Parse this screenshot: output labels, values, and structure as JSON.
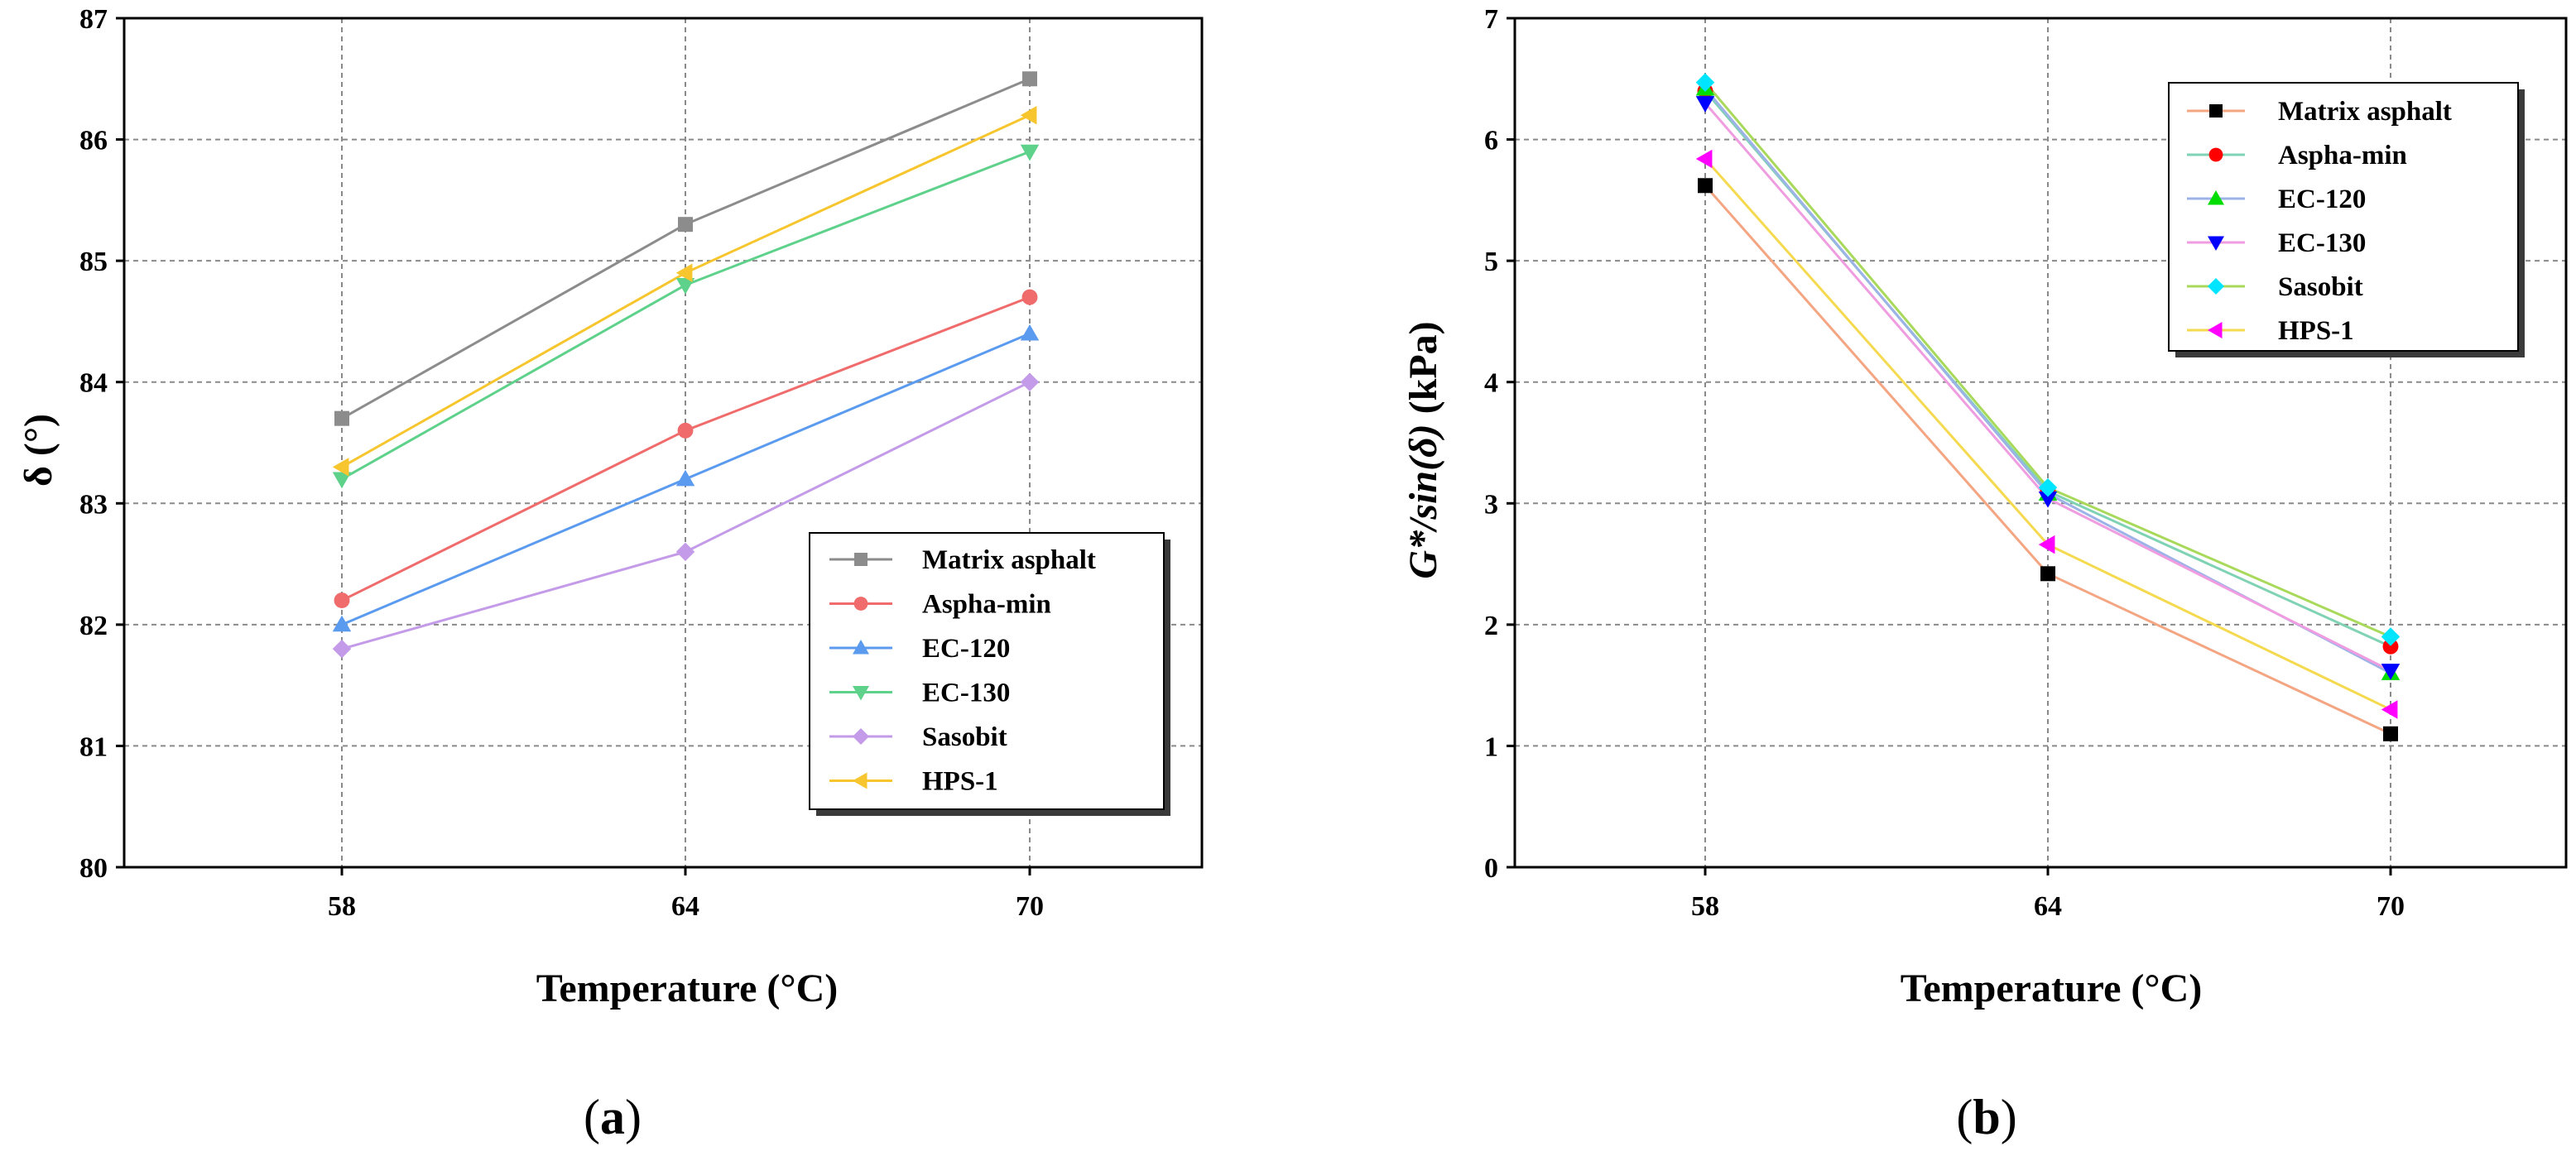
{
  "chart_data": [
    {
      "type": "line",
      "panel_label": "a",
      "xlabel": "Temperature (°C)",
      "ylabel": "δ (°)",
      "categories": [
        "58",
        "64",
        "70"
      ],
      "ylim": [
        80,
        87
      ],
      "yticks": [
        "80",
        "81",
        "82",
        "83",
        "84",
        "85",
        "86",
        "87"
      ],
      "grid": true,
      "legend_position": "bottom-right",
      "series": [
        {
          "name": "Matrix asphalt",
          "values": [
            83.7,
            85.3,
            86.5
          ],
          "color": "#8c8c8c",
          "line_color": "#8c8c8c",
          "marker": "square"
        },
        {
          "name": "Aspha-min",
          "values": [
            82.2,
            83.6,
            84.7
          ],
          "color": "#f06b6b",
          "line_color": "#f06b6b",
          "marker": "circle"
        },
        {
          "name": "EC-120",
          "values": [
            82.0,
            83.2,
            84.4
          ],
          "color": "#5b9bef",
          "line_color": "#5b9bef",
          "marker": "triangle-up"
        },
        {
          "name": "EC-130",
          "values": [
            83.2,
            84.8,
            85.9
          ],
          "color": "#5ed18a",
          "line_color": "#5ed18a",
          "marker": "triangle-down"
        },
        {
          "name": "Sasobit",
          "values": [
            81.8,
            82.6,
            84.0
          ],
          "color": "#c39be8",
          "line_color": "#c39be8",
          "marker": "diamond"
        },
        {
          "name": "HPS-1",
          "values": [
            83.3,
            84.9,
            86.2
          ],
          "color": "#f7c52e",
          "line_color": "#f7c52e",
          "marker": "triangle-left"
        }
      ]
    },
    {
      "type": "line",
      "panel_label": "b",
      "xlabel": "Temperature (°C)",
      "ylabel_main": "G*/sin(δ)",
      "ylabel_unit": " (kPa)",
      "categories": [
        "58",
        "64",
        "70"
      ],
      "ylim": [
        0,
        7
      ],
      "yticks": [
        "0",
        "1",
        "2",
        "3",
        "4",
        "5",
        "6",
        "7"
      ],
      "grid": true,
      "legend_position": "top-right",
      "series": [
        {
          "name": "Matrix asphalt",
          "values": [
            5.62,
            2.42,
            1.1
          ],
          "color": "#000000",
          "line_color": "#f4a582",
          "marker": "square"
        },
        {
          "name": "Aspha-min",
          "values": [
            6.4,
            3.1,
            1.82
          ],
          "color": "#ff0000",
          "line_color": "#7fd3b4",
          "marker": "circle"
        },
        {
          "name": "EC-120",
          "values": [
            6.42,
            3.08,
            1.6
          ],
          "color": "#00dd00",
          "line_color": "#9db3e8",
          "marker": "triangle-up"
        },
        {
          "name": "EC-130",
          "values": [
            6.3,
            3.04,
            1.62
          ],
          "color": "#0000ff",
          "line_color": "#ef9ce0",
          "marker": "triangle-down"
        },
        {
          "name": "Sasobit",
          "values": [
            6.47,
            3.13,
            1.9
          ],
          "color": "#00e5ff",
          "line_color": "#a8d95a",
          "marker": "diamond"
        },
        {
          "name": "HPS-1",
          "values": [
            5.84,
            2.66,
            1.3
          ],
          "color": "#ff00ff",
          "line_color": "#f5d94f",
          "marker": "triangle-left"
        }
      ]
    }
  ]
}
